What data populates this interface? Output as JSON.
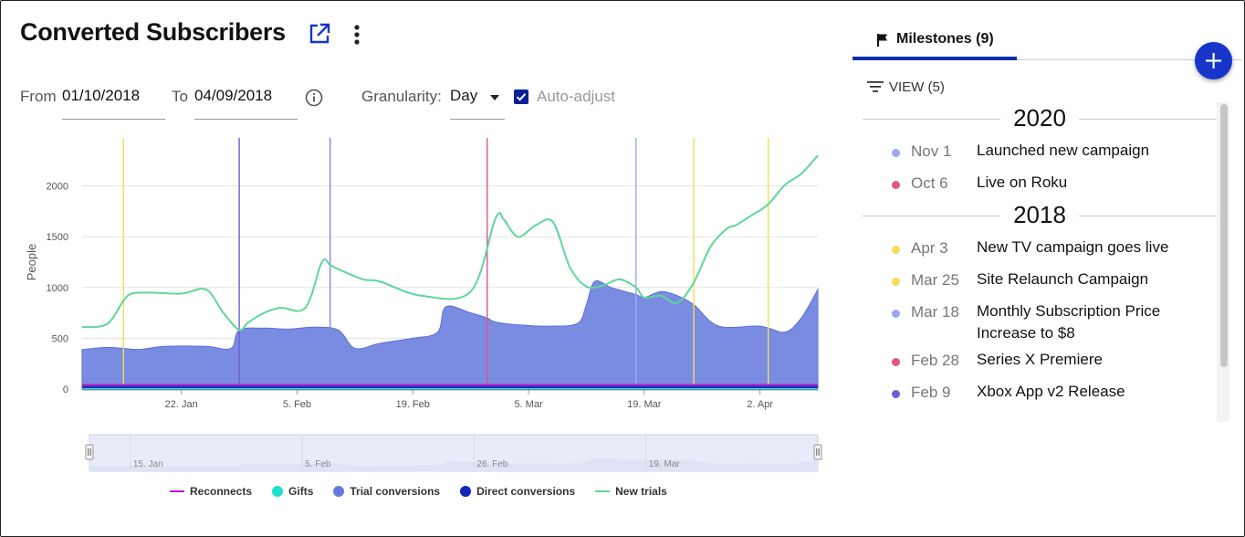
{
  "header": {
    "title": "Converted Subscribers",
    "external_link_icon": "external-link-icon",
    "more_icon": "more-vertical-icon"
  },
  "filters": {
    "from_label": "From",
    "from_value": "01/10/2018",
    "to_label": "To",
    "to_value": "04/09/2018",
    "info_icon": "info-icon",
    "granularity_label": "Granularity:",
    "granularity_value": "Day",
    "auto_adjust_label": "Auto-adjust",
    "auto_adjust_checked": true
  },
  "chart_data": {
    "type": "area",
    "ylabel": "People",
    "yticks": [
      0,
      500,
      1000,
      1500,
      2000
    ],
    "ylim": [
      0,
      2500
    ],
    "xlim": [
      "2018-01-10",
      "2018-04-09"
    ],
    "xtick_labels": [
      "22. Jan",
      "5. Feb",
      "19. Feb",
      "5. Mar",
      "19. Mar",
      "2. Apr"
    ],
    "xtick_dates": [
      "2018-01-22",
      "2018-02-05",
      "2018-02-19",
      "2018-03-05",
      "2018-03-19",
      "2018-04-02"
    ],
    "navigator_labels": [
      "15. Jan",
      "5. Feb",
      "26. Feb",
      "19. Mar"
    ],
    "navigator_dates": [
      "2018-01-15",
      "2018-02-05",
      "2018-02-26",
      "2018-03-19"
    ],
    "series": [
      {
        "name": "New trials",
        "color": "#5fd69a",
        "style": "line",
        "dates": [
          "2018-01-10",
          "2018-01-13",
          "2018-01-15",
          "2018-01-16",
          "2018-01-18",
          "2018-01-22",
          "2018-01-25",
          "2018-01-27",
          "2018-01-29",
          "2018-01-30",
          "2018-02-01",
          "2018-02-03",
          "2018-02-06",
          "2018-02-08",
          "2018-02-09",
          "2018-02-10",
          "2018-02-13",
          "2018-02-15",
          "2018-02-20",
          "2018-02-26",
          "2018-03-01",
          "2018-03-02",
          "2018-03-03",
          "2018-03-04",
          "2018-03-06",
          "2018-03-08",
          "2018-03-10",
          "2018-03-12",
          "2018-03-14",
          "2018-03-16",
          "2018-03-18",
          "2018-03-19",
          "2018-03-21",
          "2018-03-23",
          "2018-03-25",
          "2018-03-27",
          "2018-03-29",
          "2018-03-30",
          "2018-04-01",
          "2018-04-03",
          "2018-04-05",
          "2018-04-07",
          "2018-04-09"
        ],
        "values": [
          610,
          640,
          870,
          940,
          950,
          940,
          980,
          760,
          580,
          650,
          750,
          800,
          800,
          1250,
          1220,
          1180,
          1080,
          1060,
          920,
          960,
          1680,
          1670,
          1550,
          1500,
          1620,
          1640,
          1200,
          1010,
          1020,
          1080,
          1000,
          900,
          920,
          850,
          1050,
          1400,
          1580,
          1610,
          1710,
          1820,
          2010,
          2120,
          2300
        ]
      },
      {
        "name": "Trial conversions",
        "color": "#7386e0",
        "style": "area",
        "dates": [
          "2018-01-10",
          "2018-01-13",
          "2018-01-15",
          "2018-01-17",
          "2018-01-20",
          "2018-01-25",
          "2018-01-28",
          "2018-01-29",
          "2018-02-01",
          "2018-02-04",
          "2018-02-07",
          "2018-02-10",
          "2018-02-12",
          "2018-02-15",
          "2018-02-19",
          "2018-02-22",
          "2018-02-23",
          "2018-02-26",
          "2018-02-28",
          "2018-03-01",
          "2018-03-04",
          "2018-03-08",
          "2018-03-11",
          "2018-03-12",
          "2018-03-13",
          "2018-03-15",
          "2018-03-18",
          "2018-03-19",
          "2018-03-21",
          "2018-03-23",
          "2018-03-25",
          "2018-03-28",
          "2018-04-02",
          "2018-04-05",
          "2018-04-07",
          "2018-04-09"
        ],
        "values": [
          390,
          410,
          400,
          390,
          420,
          420,
          400,
          580,
          600,
          590,
          610,
          580,
          400,
          450,
          500,
          560,
          810,
          750,
          700,
          660,
          630,
          620,
          650,
          830,
          1060,
          1000,
          930,
          900,
          960,
          920,
          830,
          620,
          620,
          560,
          700,
          980
        ]
      },
      {
        "name": "Reconnects",
        "color": "#b01cc5",
        "style": "line",
        "dates": [
          "2018-01-10",
          "2018-04-09"
        ],
        "values": [
          40,
          40
        ]
      },
      {
        "name": "Gifts",
        "color": "#1de0d0",
        "style": "line",
        "dates": [
          "2018-01-10",
          "2018-04-09"
        ],
        "values": [
          10,
          10
        ]
      },
      {
        "name": "Direct conversions",
        "color": "#1027b8",
        "style": "line",
        "dates": [
          "2018-01-10",
          "2018-04-09"
        ],
        "values": [
          20,
          20
        ]
      }
    ],
    "milestone_markers": [
      {
        "date": "2018-01-15",
        "color": "#f5dc5a"
      },
      {
        "date": "2018-01-29",
        "color": "#6a5fd4"
      },
      {
        "date": "2018-02-09",
        "color": "#8c84df"
      },
      {
        "date": "2018-02-28",
        "color": "#e2548a"
      },
      {
        "date": "2018-03-18",
        "color": "#9aaaf0"
      },
      {
        "date": "2018-03-25",
        "color": "#f5dc5a"
      },
      {
        "date": "2018-04-03",
        "color": "#f5dc5a"
      }
    ],
    "legend": [
      {
        "name": "Reconnects",
        "color": "#b01cc5",
        "shape": "line"
      },
      {
        "name": "Gifts",
        "color": "#1de0d0",
        "shape": "dot"
      },
      {
        "name": "Trial conversions",
        "color": "#6678d9",
        "shape": "dot"
      },
      {
        "name": "Direct conversions",
        "color": "#1027b8",
        "shape": "dot"
      },
      {
        "name": "New trials",
        "color": "#5fd69a",
        "shape": "line"
      }
    ]
  },
  "milestones": {
    "tab_label": "Milestones (9)",
    "tab_icon": "flag-icon",
    "add_icon": "plus-icon",
    "view_label": "VIEW (5)",
    "view_icon": "filter-icon",
    "groups": [
      {
        "year": "2020",
        "items": [
          {
            "date": "Nov 1",
            "title": "Launched new campaign",
            "color": "#9aaaf0"
          },
          {
            "date": "Oct 6",
            "title": "Live on Roku",
            "color": "#e2548a"
          }
        ]
      },
      {
        "year": "2018",
        "items": [
          {
            "date": "Apr 3",
            "title": "New TV campaign goes live",
            "color": "#f5dc5a"
          },
          {
            "date": "Mar 25",
            "title": "Site Relaunch Campaign",
            "color": "#f5dc5a"
          },
          {
            "date": "Mar 18",
            "title": "Monthly Subscription Price Increase to $8",
            "color": "#9aaaf0"
          },
          {
            "date": "Feb 28",
            "title": "Series X Premiere",
            "color": "#e2548a"
          },
          {
            "date": "Feb 9",
            "title": "Xbox App v2 Release",
            "color": "#6a5fd4"
          }
        ]
      }
    ]
  }
}
